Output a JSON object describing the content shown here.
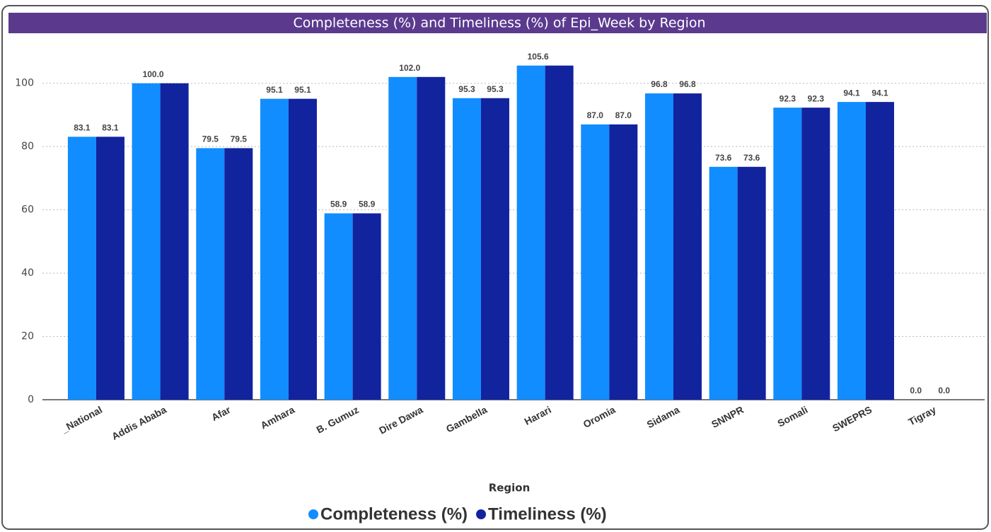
{
  "chart_data": {
    "type": "bar",
    "title": "Completeness (%) and Timeliness (%) of Epi_Week by Region",
    "x_label": "Region",
    "categories": [
      "_National",
      "Addis Ababa",
      "Afar",
      "Amhara",
      "B. Gumuz",
      "Dire Dawa",
      "Gambella",
      "Harari",
      "Oromia",
      "Sidama",
      "SNNPR",
      "Somali",
      "SWEPRS",
      "Tigray"
    ],
    "series": [
      {
        "name": "Completeness (%)",
        "color": "#118dff",
        "values": [
          83.1,
          100,
          79.5,
          95.1,
          58.9,
          102,
          95.3,
          105.6,
          87,
          96.8,
          73.6,
          92.3,
          94.1,
          0
        ],
        "value_labels": [
          "83.1",
          "100.0",
          "79.5",
          "95.1",
          "58.9",
          "102.0",
          "95.3",
          "105.6",
          "87.0",
          "96.8",
          "73.6",
          "92.3",
          "94.1",
          "0.0"
        ]
      },
      {
        "name": "Timeliness (%)",
        "color": "#12239e",
        "values": [
          83.1,
          100,
          79.5,
          95.1,
          58.9,
          102,
          95.3,
          105.6,
          87,
          96.8,
          73.6,
          92.3,
          94.1,
          0
        ],
        "value_labels": [
          "83.1",
          null,
          "79.5",
          "95.1",
          "58.9",
          null,
          "95.3",
          null,
          "87.0",
          "96.8",
          "73.6",
          "92.3",
          "94.1",
          "0.0"
        ]
      }
    ],
    "ylim": [
      0,
      110
    ],
    "yticks": [
      0,
      20,
      40,
      60,
      80,
      100
    ],
    "grid": true,
    "legend": "bottom"
  }
}
